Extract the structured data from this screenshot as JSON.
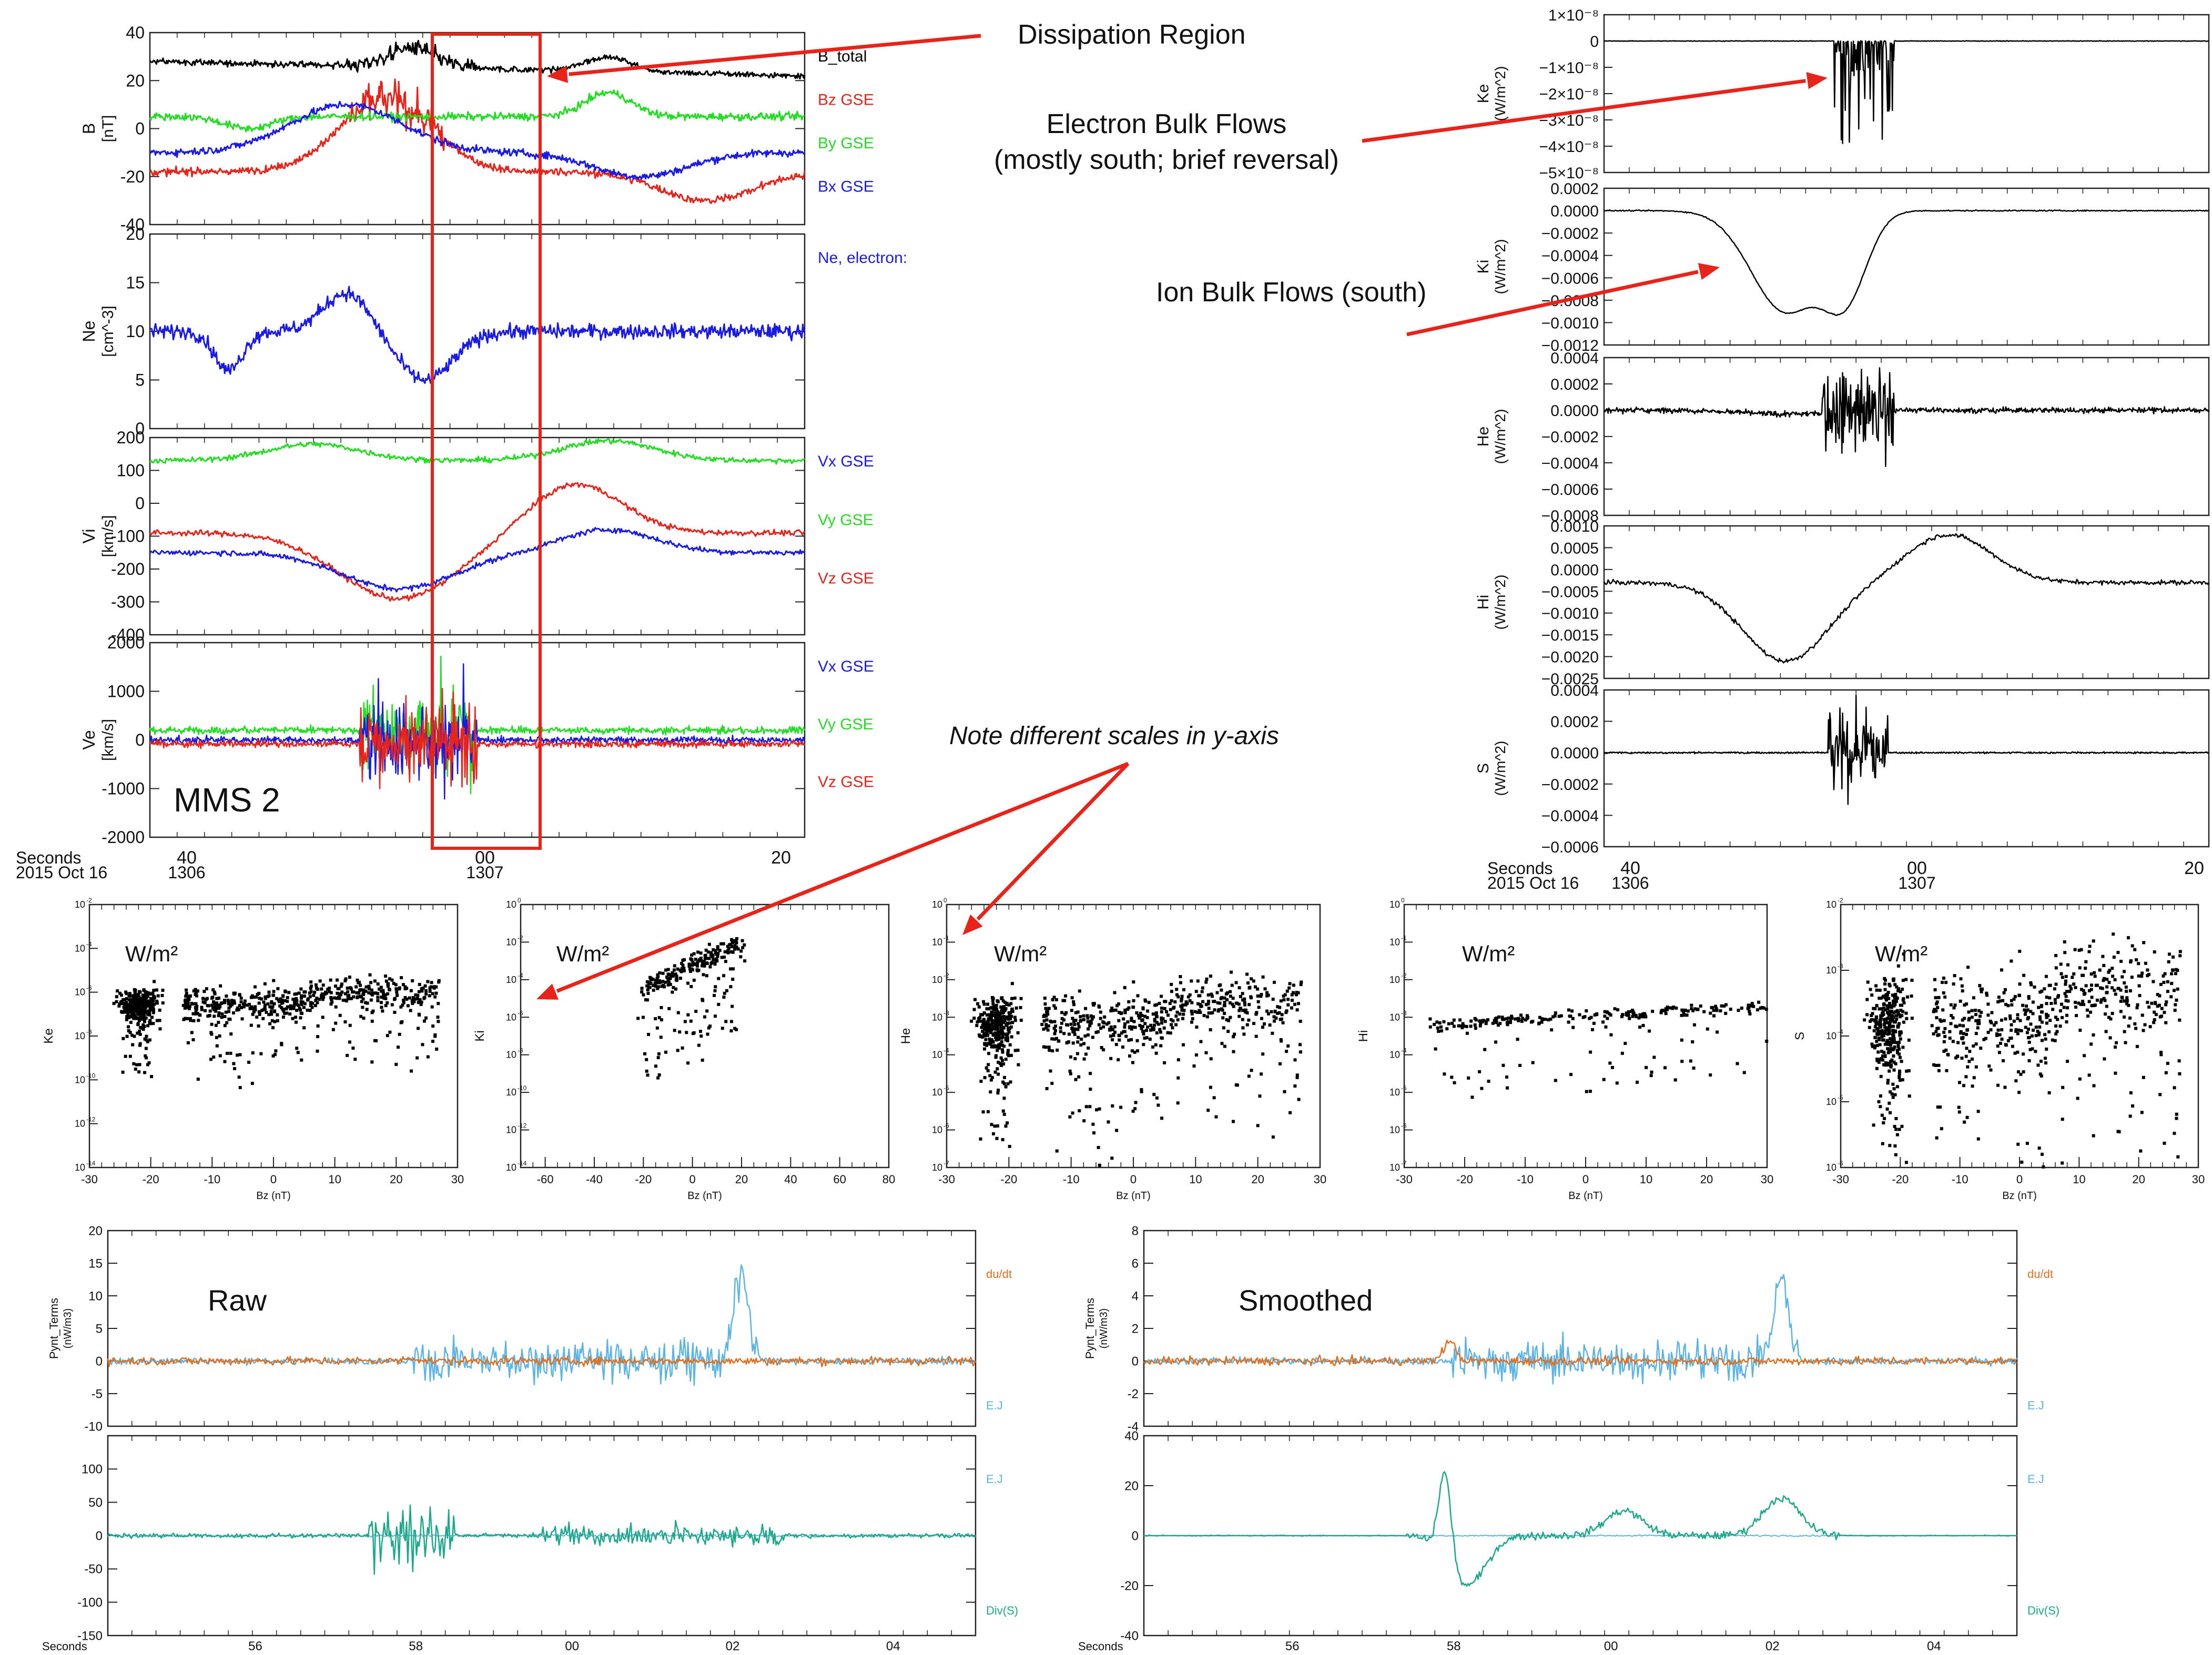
{
  "annotations": {
    "dissipation": "Dissipation Region",
    "electron_line1": "Electron Bulk Flows",
    "electron_line2": "(mostly south; brief reversal)",
    "ion": "Ion Bulk Flows (south)",
    "note": "Note different scales in y-axis",
    "spacecraft": "MMS 2",
    "raw": "Raw",
    "smoothed": "Smoothed",
    "unit_label": "W/m²"
  },
  "colors": {
    "black": "#000000",
    "red": "#e8231a",
    "green": "#22dd22",
    "blue": "#1a1ae6",
    "orange": "#e07020",
    "lightblue": "#5ab4e6",
    "teal": "#1aa88a",
    "box": "#e8231a"
  },
  "chart_data": [
    {
      "id": "left-stack",
      "type": "line",
      "xlabel_title": "Seconds",
      "date_label": "2015 Oct 16",
      "x_ticks": [
        {
          "label": "40",
          "sub": "1306"
        },
        {
          "label": "00",
          "sub": "1307"
        },
        {
          "label": "20",
          "sub": ""
        }
      ],
      "panels": [
        {
          "ylabel": "B",
          "yunit": "[nT]",
          "ylim": [
            -40,
            40
          ],
          "yticks": [
            -40,
            -20,
            0,
            20,
            40
          ],
          "legend": [
            "B_total",
            "Bz GSE",
            "By GSE",
            "Bx GSE"
          ],
          "legend_colors": [
            "black",
            "red",
            "green",
            "blue"
          ]
        },
        {
          "ylabel": "Ne",
          "yunit": "[cm^-3]",
          "ylim": [
            0,
            20
          ],
          "yticks": [
            0,
            5,
            10,
            15,
            20
          ],
          "legend": [
            "Ne, electron:"
          ],
          "legend_colors": [
            "blue"
          ]
        },
        {
          "ylabel": "Vi",
          "yunit": "[km/s]",
          "ylim": [
            -400,
            200
          ],
          "yticks": [
            -400,
            -300,
            -200,
            -100,
            0,
            100,
            200
          ],
          "legend": [
            "Vx GSE",
            "Vy GSE",
            "Vz GSE"
          ],
          "legend_colors": [
            "blue",
            "green",
            "red"
          ]
        },
        {
          "ylabel": "Ve",
          "yunit": "[km/s]",
          "ylim": [
            -2000,
            2000
          ],
          "yticks": [
            -2000,
            -1000,
            0,
            1000,
            2000
          ],
          "legend": [
            "Vx GSE",
            "Vy GSE",
            "Vz GSE"
          ],
          "legend_colors": [
            "blue",
            "green",
            "red"
          ]
        }
      ]
    },
    {
      "id": "right-stack",
      "type": "line",
      "xlabel_title": "Seconds",
      "date_label": "2015 Oct 16",
      "x_ticks": [
        {
          "label": "40",
          "sub": "1306"
        },
        {
          "label": "00",
          "sub": "1307"
        },
        {
          "label": "20",
          "sub": ""
        }
      ],
      "panels": [
        {
          "ylabel": "Ke",
          "yunit": "(W/m^2)",
          "ylim": [
            -5e-08,
            1e-08
          ],
          "yticks": [
            "1×10⁻⁸",
            "0",
            "−1×10⁻⁸",
            "−2×10⁻⁸",
            "−3×10⁻⁸",
            "−4×10⁻⁸",
            "−5×10⁻⁸"
          ]
        },
        {
          "ylabel": "Ki",
          "yunit": "(W/m^2)",
          "ylim": [
            -0.0012,
            0.0002
          ],
          "yticks": [
            "0.0002",
            "0.0000",
            "−0.0002",
            "−0.0004",
            "−0.0006",
            "−0.0008",
            "−0.0010",
            "−0.0012"
          ]
        },
        {
          "ylabel": "He",
          "yunit": "(W/m^2)",
          "ylim": [
            -0.0008,
            0.0004
          ],
          "yticks": [
            "0.0004",
            "0.0002",
            "0.0000",
            "−0.0002",
            "−0.0004",
            "−0.0006",
            "−0.0008"
          ]
        },
        {
          "ylabel": "Hi",
          "yunit": "(W/m^2)",
          "ylim": [
            -0.0025,
            0.001
          ],
          "yticks": [
            "0.0010",
            "0.0005",
            "0.0000",
            "−0.0005",
            "−0.0010",
            "−0.0015",
            "−0.0020",
            "−0.0025"
          ]
        },
        {
          "ylabel": "S",
          "yunit": "(W/m^2)",
          "ylim": [
            -0.0006,
            0.0004
          ],
          "yticks": [
            "0.0004",
            "0.0002",
            "0.0000",
            "−0.0002",
            "−0.0004",
            "−0.0006"
          ]
        }
      ]
    },
    {
      "id": "scatter-row",
      "type": "scatter",
      "xlabel": "Bz (nT)",
      "panels": [
        {
          "ylabel": "Ke",
          "xlim": [
            -30,
            30
          ],
          "xticks": [
            -30,
            -20,
            -10,
            0,
            10,
            20,
            30
          ],
          "yexp": [
            -14,
            -2
          ]
        },
        {
          "ylabel": "Ki",
          "xlim": [
            -70,
            80
          ],
          "xticks": [
            -60,
            -40,
            -20,
            0,
            20,
            40,
            60,
            80
          ],
          "yexp": [
            -14,
            0
          ]
        },
        {
          "ylabel": "He",
          "xlim": [
            -30,
            30
          ],
          "xticks": [
            -30,
            -20,
            -10,
            0,
            10,
            20,
            30
          ],
          "yexp": [
            -7,
            0
          ]
        },
        {
          "ylabel": "Hi",
          "xlim": [
            -30,
            30
          ],
          "xticks": [
            -30,
            -20,
            -10,
            0,
            10,
            20,
            30
          ],
          "yexp": [
            -7,
            0
          ]
        },
        {
          "ylabel": "S",
          "xlim": [
            -30,
            30
          ],
          "xticks": [
            -30,
            -20,
            -10,
            0,
            10,
            20,
            30
          ],
          "yexp": [
            -6,
            -2
          ]
        }
      ]
    },
    {
      "id": "poynting-raw",
      "type": "line",
      "xlabel_title": "Seconds",
      "x_ticks": [
        "56",
        "58",
        "00",
        "02",
        "04"
      ],
      "panels": [
        {
          "ylabel": "Pynt_Terms",
          "yunit": "(nW/m3)",
          "ylim": [
            -10,
            20
          ],
          "yticks": [
            -10,
            -5,
            0,
            5,
            10,
            15,
            20
          ],
          "legend": [
            "du/dt",
            "E.J"
          ],
          "legend_colors": [
            "orange",
            "lightblue"
          ]
        },
        {
          "ylim": [
            -150,
            150
          ],
          "yticks": [
            -150,
            -100,
            -50,
            0,
            50,
            100
          ],
          "legend": [
            "E.J",
            "Div(S)"
          ],
          "legend_colors": [
            "lightblue",
            "teal"
          ]
        }
      ]
    },
    {
      "id": "poynting-smoothed",
      "type": "line",
      "xlabel_title": "Seconds",
      "x_ticks": [
        "56",
        "58",
        "00",
        "02",
        "04"
      ],
      "panels": [
        {
          "ylabel": "Pynt_Terms",
          "yunit": "(nW/m3)",
          "ylim": [
            -4,
            8
          ],
          "yticks": [
            -4,
            -2,
            0,
            2,
            4,
            6,
            8
          ],
          "legend": [
            "du/dt",
            "E.J"
          ],
          "legend_colors": [
            "orange",
            "lightblue"
          ]
        },
        {
          "ylim": [
            -40,
            40
          ],
          "yticks": [
            -40,
            -20,
            0,
            20,
            40
          ],
          "legend": [
            "E.J",
            "Div(S)"
          ],
          "legend_colors": [
            "lightblue",
            "teal"
          ]
        }
      ]
    }
  ]
}
